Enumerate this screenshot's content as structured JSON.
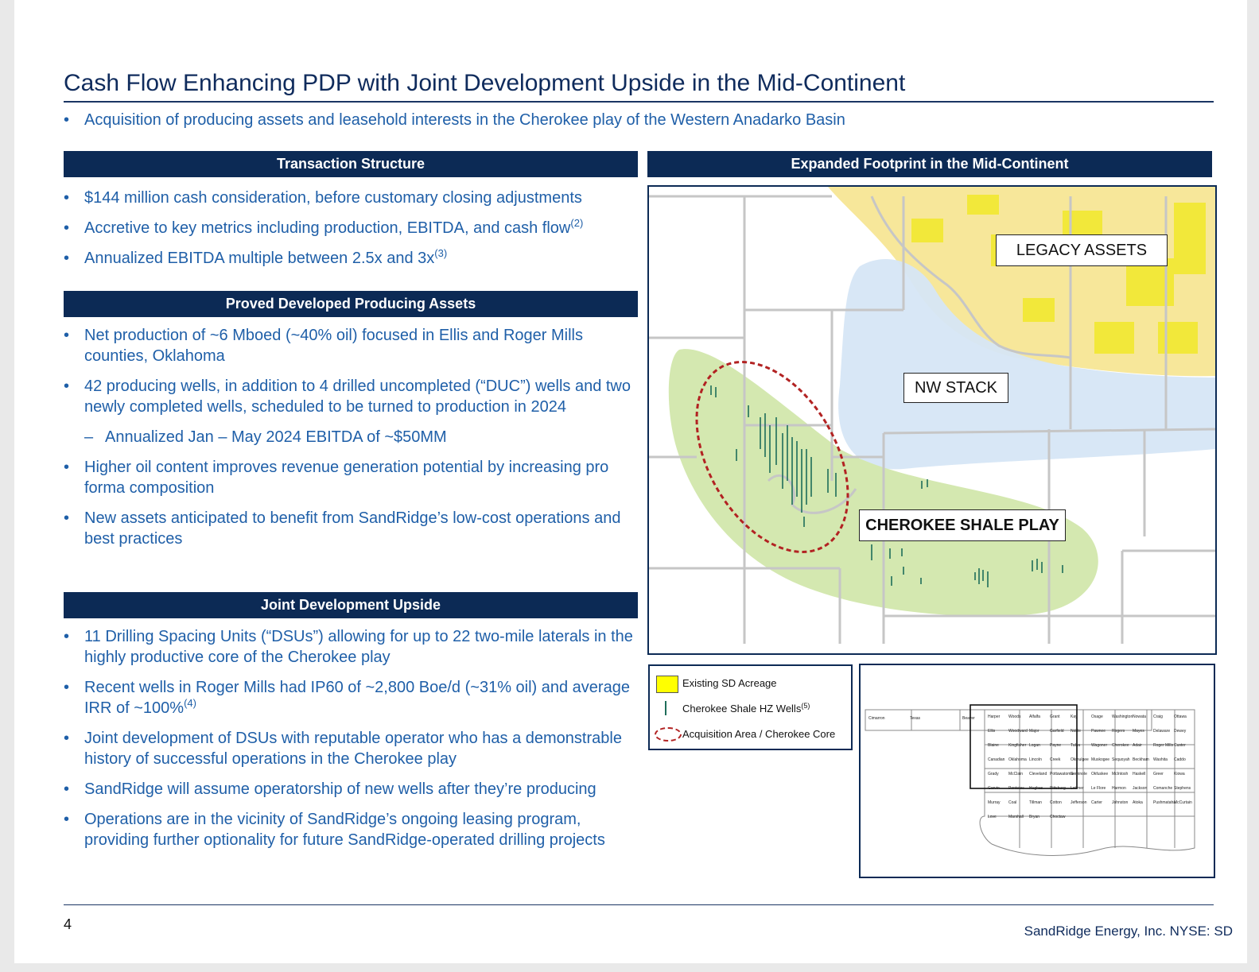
{
  "title": "Cash Flow Enhancing PDP with Joint Development Upside in the Mid-Continent",
  "intro": "Acquisition of producing assets and leasehold interests in the Cherokee play of the Western Anadarko Basin",
  "sections": {
    "transaction": {
      "header": "Transaction Structure",
      "items": [
        {
          "text": "$144 million cash consideration, before customary closing adjustments",
          "sup": ""
        },
        {
          "text": "Accretive to key metrics including production, EBITDA, and cash flow",
          "sup": "(2)"
        },
        {
          "text": "Annualized EBITDA multiple between 2.5x and 3x",
          "sup": "(3)"
        }
      ]
    },
    "pdp": {
      "header": "Proved Developed Producing Assets",
      "items": [
        {
          "text": "Net production of ~6 Mboed (~40% oil) focused in Ellis and Roger Mills counties, Oklahoma",
          "sup": ""
        },
        {
          "text": "42 producing wells, in addition to 4 drilled uncompleted (“DUC”) wells and two newly completed wells, scheduled to be turned to production in 2024",
          "sup": ""
        },
        {
          "text": "Annualized Jan – May 2024 EBITDA of ~$50MM",
          "sup": ""
        },
        {
          "text": "Higher oil content improves revenue generation potential by increasing pro forma composition",
          "sup": ""
        },
        {
          "text": "New assets anticipated to benefit from SandRidge’s low-cost operations and best practices",
          "sup": ""
        }
      ]
    },
    "jdu": {
      "header": "Joint Development Upside",
      "items": [
        {
          "text": "11 Drilling Spacing Units (“DSUs”) allowing for up to 22 two-mile laterals in the highly productive core of the Cherokee play",
          "sup": ""
        },
        {
          "text": "Recent wells in Roger Mills had IP60 of ~2,800 Boe/d (~31% oil) and average IRR of ~100%",
          "sup": "(4)"
        },
        {
          "text": "Joint development of DSUs with reputable operator who has a demonstrable history of successful operations in the Cherokee play",
          "sup": ""
        },
        {
          "text": "SandRidge will assume operatorship of new wells after they’re producing",
          "sup": ""
        },
        {
          "text": "Operations are in the vicinity of  SandRidge’s ongoing leasing program, providing further optionality for future SandRidge-operated drilling projects",
          "sup": ""
        }
      ]
    }
  },
  "map": {
    "header": "Expanded Footprint in the Mid-Continent",
    "labels": {
      "legacy": "LEGACY ASSETS",
      "nwstack": "NW STACK",
      "cherokee": "CHEROKEE SHALE PLAY"
    },
    "colors": {
      "legacy": "#f7e79a",
      "nwstack": "#d6e6f5",
      "cherokee": "#d4e8b0",
      "acreage": "#f2e83a",
      "wells": "#1e6e5a",
      "acq": "#b22222"
    }
  },
  "legend": {
    "acreage": "Existing SD Acreage",
    "wells": "Cherokee Shale HZ Wells",
    "wells_sup": "(5)",
    "acq": "Acquisition Area / Cherokee Core"
  },
  "inset": {
    "counties": [
      "Cimarron",
      "Texas",
      "Beaver",
      "Harper",
      "Woods",
      "Alfalfa",
      "Grant",
      "Kay",
      "Osage",
      "Washington",
      "Nowata",
      "Craig",
      "Ottawa",
      "Ellis",
      "Woodward",
      "Major",
      "Garfield",
      "Noble",
      "Pawnee",
      "Rogers",
      "Mayes",
      "Delaware",
      "Dewey",
      "Blaine",
      "Kingfisher",
      "Logan",
      "Payne",
      "Tulsa",
      "Wagoner",
      "Cherokee",
      "Adair",
      "Roger Mills",
      "Custer",
      "Canadian",
      "Oklahoma",
      "Lincoln",
      "Creek",
      "Okmulgee",
      "Muskogee",
      "Sequoyah",
      "Beckham",
      "Washita",
      "Caddo",
      "Grady",
      "McClain",
      "Cleveland",
      "Pottawatomie",
      "Seminole",
      "Okfuskee",
      "McIntosh",
      "Haskell",
      "Greer",
      "Kiowa",
      "Garvin",
      "Pontotoc",
      "Hughes",
      "Pittsburg",
      "Latimer",
      "Le Flore",
      "Harmon",
      "Jackson",
      "Comanche",
      "Stephens",
      "Murray",
      "Coal",
      "Tillman",
      "Cotton",
      "Jefferson",
      "Carter",
      "Johnston",
      "Atoka",
      "Pushmataha",
      "McCurtain",
      "Love",
      "Marshall",
      "Bryan",
      "Choctaw"
    ]
  },
  "footer": {
    "page": "4",
    "company": "SandRidge Energy, Inc.  NYSE: SD"
  }
}
